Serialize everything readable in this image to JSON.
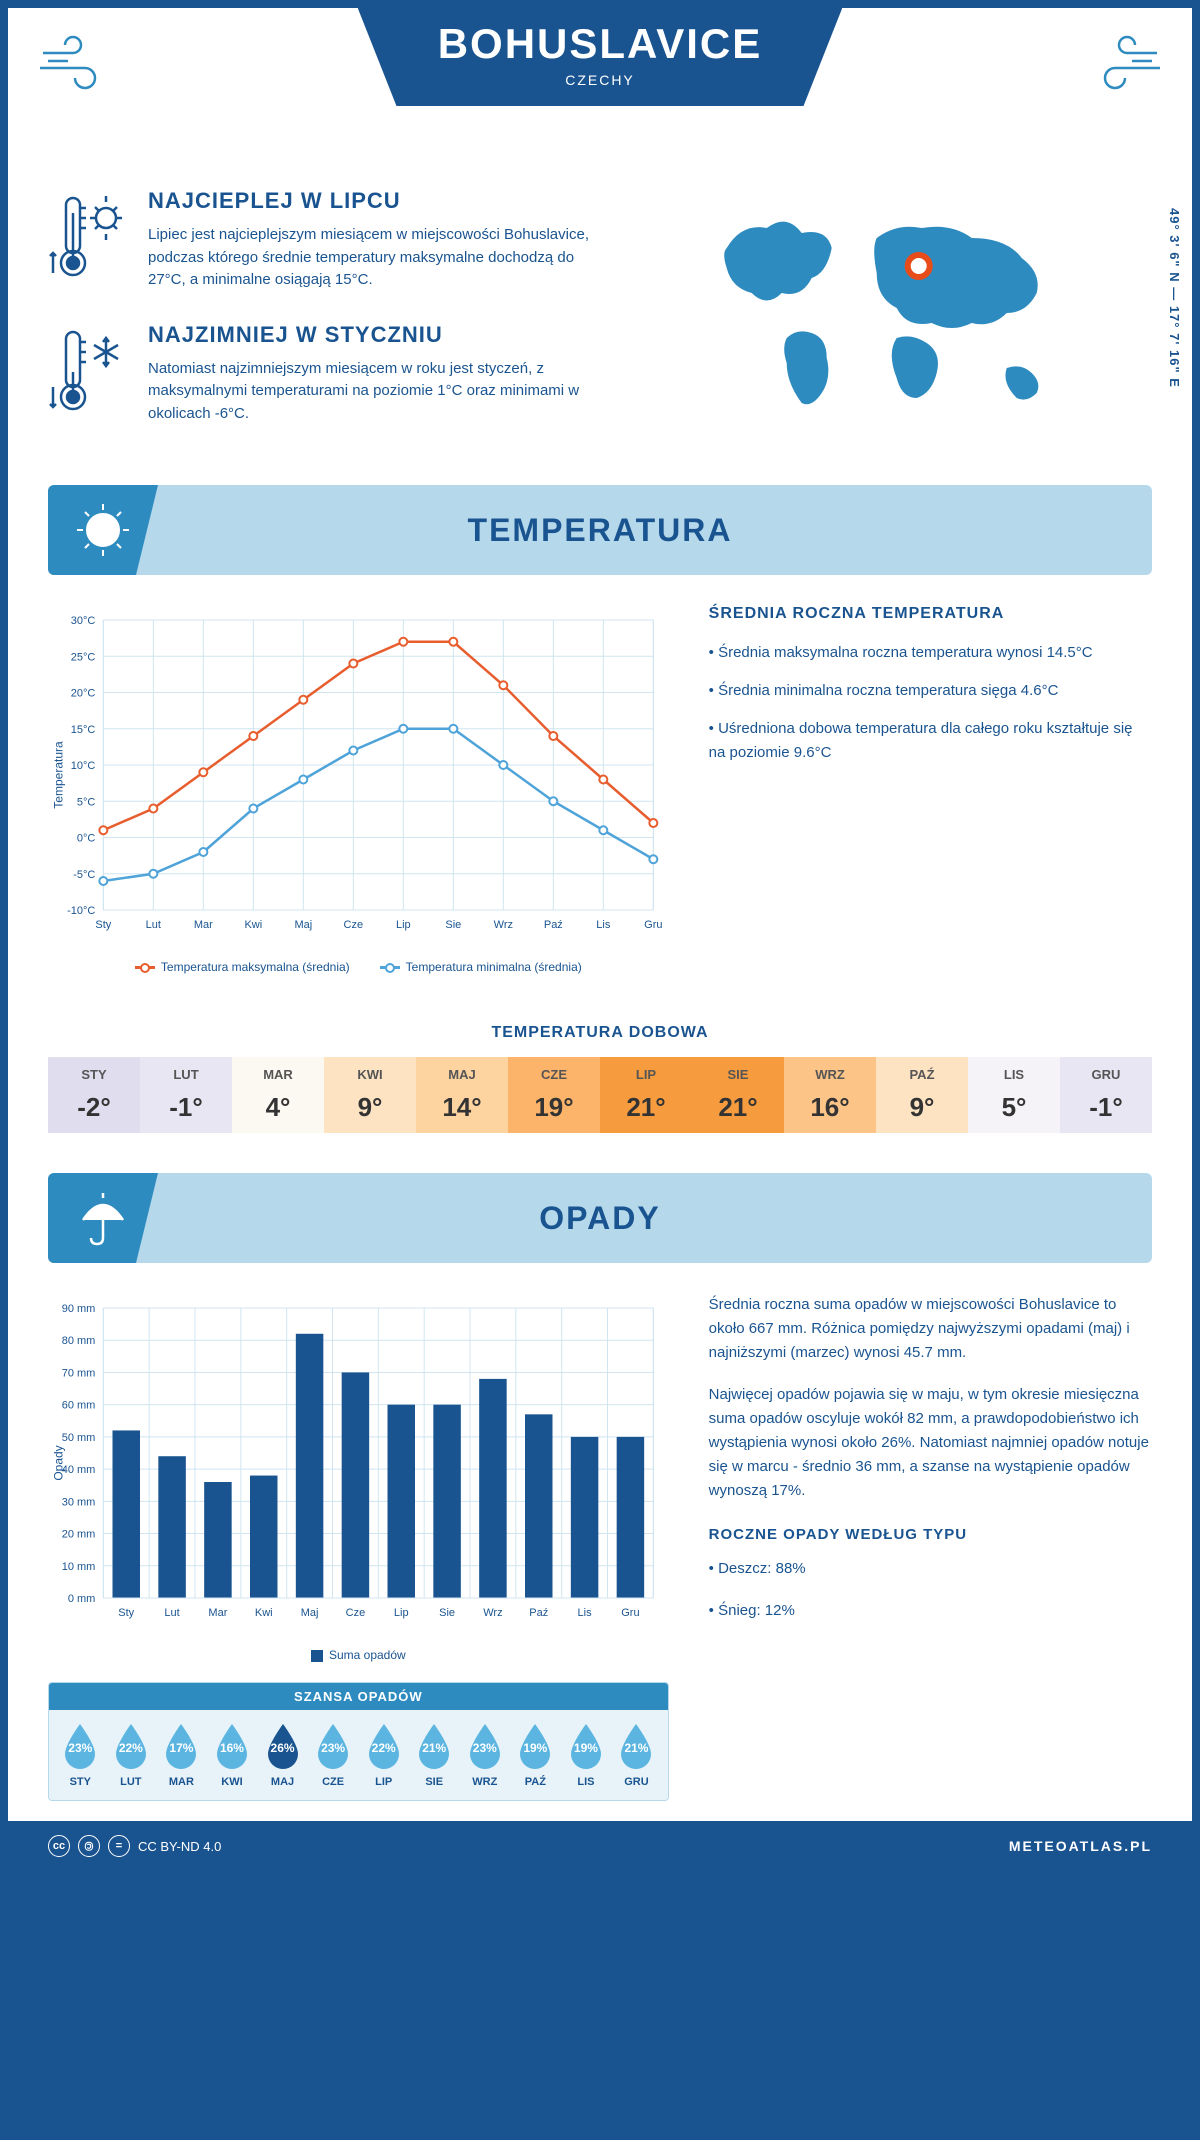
{
  "header": {
    "title": "BOHUSLAVICE",
    "subtitle": "CZECHY",
    "coords": "49° 3' 6\" N — 17° 7' 16\" E"
  },
  "intro": {
    "hot": {
      "title": "NAJCIEPLEJ W LIPCU",
      "text": "Lipiec jest najcieplejszym miesiącem w miejscowości Bohuslavice, podczas którego średnie temperatury maksymalne dochodzą do 27°C, a minimalne osiągają 15°C."
    },
    "cold": {
      "title": "NAJZIMNIEJ W STYCZNIU",
      "text": "Natomiast najzimniejszym miesiącem w roku jest styczeń, z maksymalnymi temperaturami na poziomie 1°C oraz minimami w okolicach -6°C."
    }
  },
  "colors": {
    "primary": "#1a5490",
    "lightBlue": "#b5d9eb",
    "medBlue": "#2e8bc0",
    "maxLine": "#e85d2e",
    "minLine": "#4ea3d9",
    "barFill": "#1a5490",
    "grid": "#d0e5f0"
  },
  "temperature": {
    "sectionTitle": "TEMPERATURA",
    "chart": {
      "type": "line",
      "ylabel": "Temperatura",
      "months": [
        "Sty",
        "Lut",
        "Mar",
        "Kwi",
        "Maj",
        "Cze",
        "Lip",
        "Sie",
        "Wrz",
        "Paź",
        "Lis",
        "Gru"
      ],
      "max": [
        1,
        4,
        9,
        14,
        19,
        24,
        27,
        27,
        21,
        14,
        8,
        2
      ],
      "min": [
        -6,
        -5,
        -2,
        4,
        8,
        12,
        15,
        15,
        10,
        5,
        1,
        -3
      ],
      "ylim": [
        -10,
        30
      ],
      "ytick_step": 5,
      "maxColor": "#e85d2e",
      "minColor": "#4ea3d9",
      "legendMax": "Temperatura maksymalna (średnia)",
      "legendMin": "Temperatura minimalna (średnia)"
    },
    "info": {
      "title": "ŚREDNIA ROCZNA TEMPERATURA",
      "b1": "• Średnia maksymalna roczna temperatura wynosi 14.5°C",
      "b2": "• Średnia minimalna roczna temperatura sięga 4.6°C",
      "b3": "• Uśredniona dobowa temperatura dla całego roku kształtuje się na poziomie 9.6°C"
    },
    "daily": {
      "title": "TEMPERATURA DOBOWA",
      "months": [
        "STY",
        "LUT",
        "MAR",
        "KWI",
        "MAJ",
        "CZE",
        "LIP",
        "SIE",
        "WRZ",
        "PAŹ",
        "LIS",
        "GRU"
      ],
      "values": [
        "-2°",
        "-1°",
        "4°",
        "9°",
        "14°",
        "19°",
        "21°",
        "21°",
        "16°",
        "9°",
        "5°",
        "-1°"
      ],
      "bgColors": [
        "#e0deee",
        "#e8e6f2",
        "#fcf8f2",
        "#fde3c2",
        "#fdd3a0",
        "#fbb469",
        "#f79b3f",
        "#f79b3f",
        "#fcc487",
        "#fde3c2",
        "#f5f3f8",
        "#e8e6f2"
      ]
    }
  },
  "precip": {
    "sectionTitle": "OPADY",
    "chart": {
      "type": "bar",
      "ylabel": "Opady",
      "months": [
        "Sty",
        "Lut",
        "Mar",
        "Kwi",
        "Maj",
        "Cze",
        "Lip",
        "Sie",
        "Wrz",
        "Paź",
        "Lis",
        "Gru"
      ],
      "values": [
        52,
        44,
        36,
        38,
        82,
        70,
        60,
        60,
        68,
        57,
        50,
        50
      ],
      "ylim": [
        0,
        90
      ],
      "ytick_step": 10,
      "barColor": "#1a5490",
      "legend": "Suma opadów"
    },
    "text1": "Średnia roczna suma opadów w miejscowości Bohuslavice to około 667 mm. Różnica pomiędzy najwyższymi opadami (maj) i najniższymi (marzec) wynosi 45.7 mm.",
    "text2": "Najwięcej opadów pojawia się w maju, w tym okresie miesięczna suma opadów oscyluje wokół 82 mm, a prawdopodobieństwo ich wystąpienia wynosi około 26%. Natomiast najmniej opadów notuje się w marcu - średnio 36 mm, a szanse na wystąpienie opadów wynoszą 17%.",
    "typeTitle": "ROCZNE OPADY WEDŁUG TYPU",
    "rain": "• Deszcz: 88%",
    "snow": "• Śnieg: 12%",
    "chance": {
      "title": "SZANSA OPADÓW",
      "months": [
        "STY",
        "LUT",
        "MAR",
        "KWI",
        "MAJ",
        "CZE",
        "LIP",
        "SIE",
        "WRZ",
        "PAŹ",
        "LIS",
        "GRU"
      ],
      "values": [
        "23%",
        "22%",
        "17%",
        "16%",
        "26%",
        "23%",
        "22%",
        "21%",
        "23%",
        "19%",
        "19%",
        "21%"
      ],
      "maxIndex": 4,
      "lightColor": "#5bb5e0",
      "darkColor": "#1a5490"
    }
  },
  "footer": {
    "license": "CC BY-ND 4.0",
    "site": "METEOATLAS.PL"
  }
}
